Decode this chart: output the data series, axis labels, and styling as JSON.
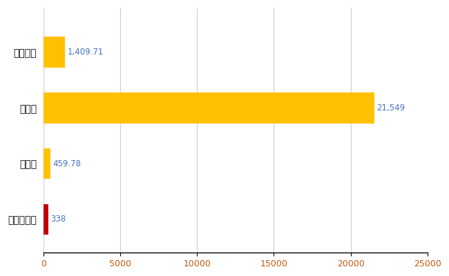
{
  "categories": [
    "全国平均",
    "県最大",
    "県平均",
    "新ひだか町"
  ],
  "values": [
    1409.71,
    21549,
    459.78,
    338
  ],
  "bar_colors": [
    "#FFC000",
    "#FFC000",
    "#FFC000",
    "#C00000"
  ],
  "value_labels": [
    "1,409.71",
    "21,549",
    "459.78",
    "338"
  ],
  "xlim": [
    0,
    25000
  ],
  "xticks": [
    0,
    5000,
    10000,
    15000,
    20000,
    25000
  ],
  "xtick_labels": [
    "0",
    "5000",
    "10000",
    "15000",
    "20000",
    "25000"
  ],
  "background_color": "#ffffff",
  "grid_color": "#cccccc",
  "label_color": "#4472C4",
  "tick_label_color": "#C55A11",
  "figsize": [
    6.5,
    4.0
  ],
  "dpi": 100
}
